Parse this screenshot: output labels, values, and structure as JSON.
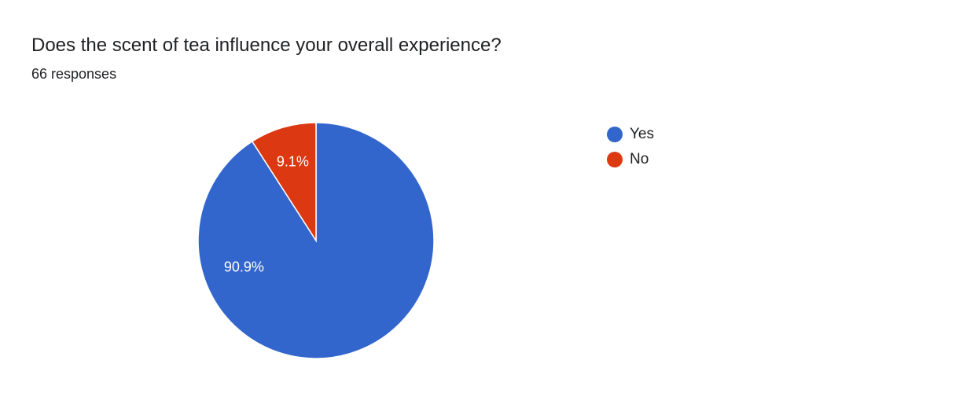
{
  "question": {
    "title": "Does the scent of tea influence your overall experience?",
    "responses": "66 responses"
  },
  "colors": {
    "yes": "#3366cc",
    "no": "#dc3912"
  },
  "chart_data": {
    "type": "pie",
    "title": "Does the scent of tea influence your overall experience?",
    "categories": [
      "Yes",
      "No"
    ],
    "values": [
      90.9,
      9.1
    ],
    "labels": [
      "90.9%",
      "9.1%"
    ],
    "colors": [
      "#3366cc",
      "#dc3912"
    ],
    "legend_position": "right"
  },
  "legend": {
    "items": [
      {
        "label": "Yes",
        "color": "#3366cc"
      },
      {
        "label": "No",
        "color": "#dc3912"
      }
    ]
  }
}
